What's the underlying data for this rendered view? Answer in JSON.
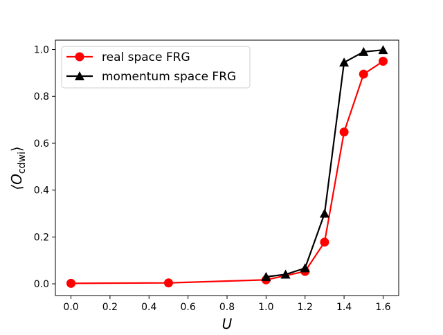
{
  "chart_data": {
    "type": "line",
    "xlabel": "U",
    "ylabel_main": "⟨O",
    "ylabel_sub": "cdwi",
    "ylabel_end": "⟩",
    "xlim": [
      -0.08,
      1.68
    ],
    "ylim": [
      -0.05,
      1.04
    ],
    "xticks": [
      0.0,
      0.2,
      0.4,
      0.6,
      0.8,
      1.0,
      1.2,
      1.4,
      1.6
    ],
    "xtick_labels": [
      "0.0",
      "0.2",
      "0.4",
      "0.6",
      "0.8",
      "1.0",
      "1.2",
      "1.4",
      "1.6"
    ],
    "yticks": [
      0.0,
      0.2,
      0.4,
      0.6,
      0.8,
      1.0
    ],
    "ytick_labels": [
      "0.0",
      "0.2",
      "0.4",
      "0.6",
      "0.8",
      "1.0"
    ],
    "grid": false,
    "legend_position": "top-left",
    "series": [
      {
        "name": "real space FRG",
        "color": "#ff0000",
        "marker": "circle",
        "x": [
          0.0,
          0.5,
          1.0,
          1.2,
          1.3,
          1.4,
          1.5,
          1.6
        ],
        "y": [
          0.002,
          0.004,
          0.017,
          0.053,
          0.178,
          0.648,
          0.895,
          0.95
        ]
      },
      {
        "name": "momentum space FRG",
        "color": "#000000",
        "marker": "triangle",
        "x": [
          1.0,
          1.1,
          1.2,
          1.3,
          1.4,
          1.5,
          1.6
        ],
        "y": [
          0.03,
          0.04,
          0.067,
          0.3,
          0.945,
          0.99,
          0.998
        ]
      }
    ]
  }
}
